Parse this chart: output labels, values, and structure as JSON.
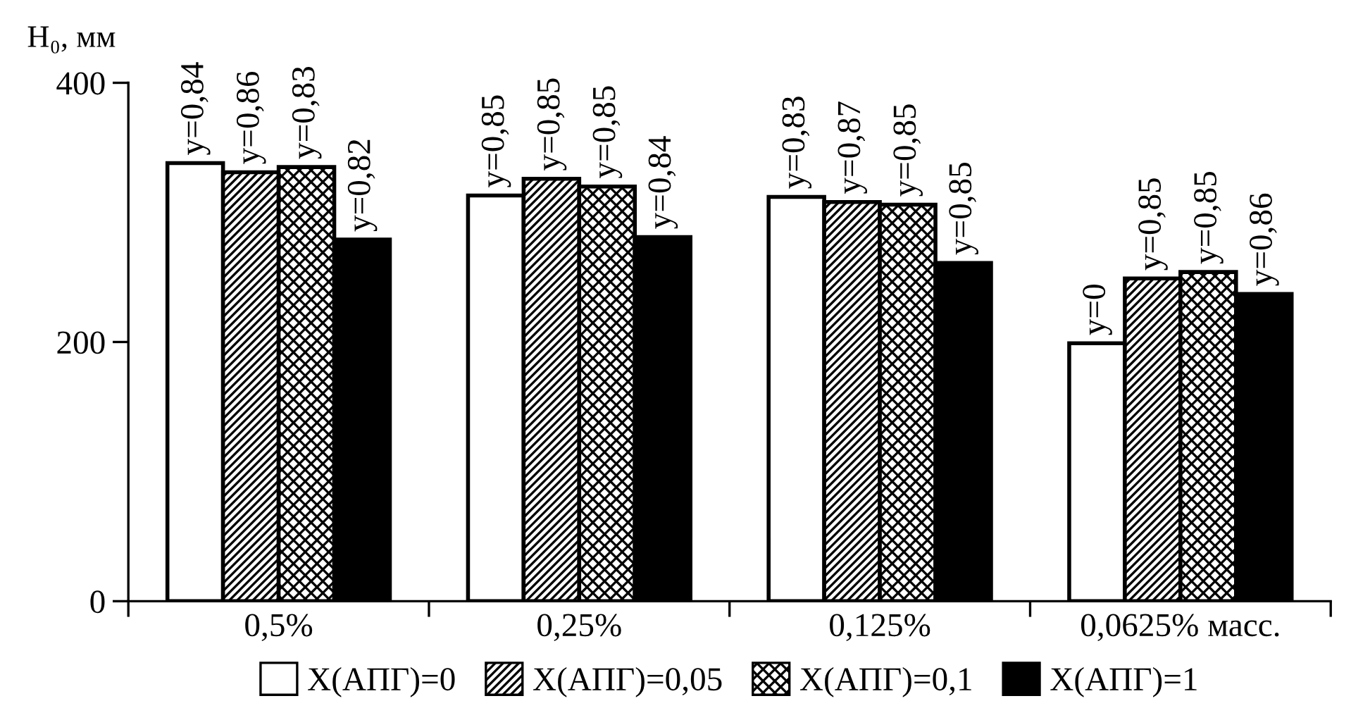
{
  "chart_data": {
    "type": "bar",
    "ylabel": "H₀, мм",
    "categories": [
      "0,5%",
      "0,25%",
      "0,125%",
      "0,0625% масс."
    ],
    "series": [
      {
        "name": "X(АПГ)=0",
        "color": "#ffffff",
        "values": [
          338,
          313,
          312,
          199
        ]
      },
      {
        "name": "X(АПГ)=0,05",
        "color": "#000000",
        "values": [
          331,
          326,
          308,
          249
        ]
      },
      {
        "name": "X(АПГ)=0,1",
        "color": "#000000",
        "values": [
          335,
          320,
          306,
          254
        ]
      },
      {
        "name": "X(АПГ)=1",
        "color": "#000000",
        "values": [
          279,
          281,
          261,
          237
        ]
      }
    ],
    "annotations": [
      "y=0,84",
      "y=0,86",
      "y=0,83",
      "y=0,82",
      "y=0,85",
      "y=0,85",
      "y=0,85",
      "y=0,84",
      "y=0,83",
      "y=0,87",
      "y=0,85",
      "y=0,85",
      "y=0",
      "y=0,85",
      "y=0,85",
      "y=0,86"
    ],
    "ylim": [
      0,
      400
    ],
    "yticks": [
      0,
      200,
      400
    ],
    "grid": false,
    "legend": "bottom"
  }
}
